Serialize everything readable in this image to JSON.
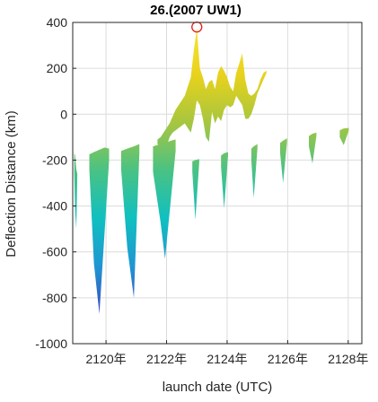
{
  "chart_data": {
    "type": "area",
    "title": "26.(2007 UW1)",
    "xlabel": "launch date (UTC)",
    "ylabel": "Deflection Distance (km)",
    "xlim": [
      2118.9,
      2128.45
    ],
    "ylim": [
      -1000,
      400
    ],
    "x_ticks": [
      {
        "value": 2120,
        "label": "2120年"
      },
      {
        "value": 2122,
        "label": "2122年"
      },
      {
        "value": 2124,
        "label": "2124年"
      },
      {
        "value": 2126,
        "label": "2126年"
      },
      {
        "value": 2128,
        "label": "2128年"
      }
    ],
    "y_ticks": [
      {
        "value": 400,
        "label": "400"
      },
      {
        "value": 200,
        "label": "200"
      },
      {
        "value": 0,
        "label": "0"
      },
      {
        "value": -200,
        "label": "-200"
      },
      {
        "value": -400,
        "label": "-400"
      },
      {
        "value": -600,
        "label": "-600"
      },
      {
        "value": -800,
        "label": "-800"
      },
      {
        "value": -1000,
        "label": "-1000"
      }
    ],
    "grid": true,
    "colormap": [
      "#3b4cc0",
      "#1e96d2",
      "#10c0c0",
      "#49c284",
      "#a7c63f",
      "#e8d21c",
      "#f9e43a"
    ],
    "lower_band": [
      {
        "x": [
          2118.95,
          2118.98,
          2119.02,
          2119.05
        ],
        "top": [
          -170,
          -180,
          -240,
          -260
        ],
        "bottom": [
          -260,
          -420,
          -500,
          -270
        ]
      },
      {
        "x": [
          2119.45,
          2119.6,
          2119.78,
          2119.95,
          2120.1
        ],
        "top": [
          -175,
          -165,
          -155,
          -145,
          -150
        ],
        "bottom": [
          -240,
          -650,
          -870,
          -520,
          -200
        ]
      },
      {
        "x": [
          2120.5,
          2120.7,
          2120.92,
          2121.1
        ],
        "top": [
          -160,
          -150,
          -140,
          -130
        ],
        "bottom": [
          -240,
          -580,
          -800,
          -170
        ]
      },
      {
        "x": [
          2121.55,
          2121.8,
          2121.95,
          2122.15,
          2122.3
        ],
        "top": [
          -140,
          -130,
          -125,
          -115,
          -110
        ],
        "bottom": [
          -250,
          -470,
          -630,
          -360,
          -160
        ]
      },
      {
        "x": [
          2122.85,
          2122.95,
          2123.08
        ],
        "top": [
          -205,
          -200,
          -195
        ],
        "bottom": [
          -250,
          -460,
          -210
        ]
      },
      {
        "x": [
          2123.8,
          2123.9,
          2124.03
        ],
        "top": [
          -180,
          -170,
          -165
        ],
        "bottom": [
          -230,
          -410,
          -180
        ]
      },
      {
        "x": [
          2124.8,
          2124.88,
          2125.0
        ],
        "top": [
          -150,
          -140,
          -130
        ],
        "bottom": [
          -200,
          -365,
          -150
        ]
      },
      {
        "x": [
          2125.75,
          2125.85,
          2125.98
        ],
        "top": [
          -125,
          -115,
          -105
        ],
        "bottom": [
          -170,
          -300,
          -120
        ]
      },
      {
        "x": [
          2126.7,
          2126.82,
          2126.95
        ],
        "top": [
          -95,
          -85,
          -80
        ],
        "bottom": [
          -140,
          -215,
          -95
        ]
      },
      {
        "x": [
          2127.72,
          2127.85,
          2128.02
        ],
        "top": [
          -70,
          -62,
          -60
        ],
        "bottom": [
          -100,
          -135,
          -70
        ]
      }
    ],
    "upper_band": {
      "x": [
        2121.7,
        2121.8,
        2121.9,
        2122.0,
        2122.1,
        2122.2,
        2122.3,
        2122.4,
        2122.5,
        2122.6,
        2122.7,
        2122.8,
        2122.9,
        2123.0,
        2123.1,
        2123.2,
        2123.3,
        2123.4,
        2123.5,
        2123.6,
        2123.7,
        2123.8,
        2123.9,
        2124.0,
        2124.1,
        2124.2,
        2124.3,
        2124.4,
        2124.5,
        2124.6,
        2124.7,
        2124.8,
        2124.9,
        2125.0,
        2125.1,
        2125.2,
        2125.3
      ],
      "top": [
        -110,
        -100,
        -80,
        -60,
        -40,
        -10,
        20,
        40,
        60,
        80,
        120,
        160,
        280,
        375,
        200,
        160,
        110,
        140,
        150,
        110,
        180,
        210,
        190,
        160,
        120,
        100,
        180,
        220,
        265,
        150,
        90,
        80,
        90,
        110,
        150,
        180,
        190
      ],
      "bottom": [
        -130,
        -140,
        -150,
        -140,
        -100,
        -80,
        -70,
        -60,
        -50,
        -40,
        -60,
        -80,
        -20,
        60,
        40,
        -20,
        -100,
        -120,
        10,
        -40,
        -10,
        -30,
        20,
        40,
        30,
        40,
        80,
        60,
        40,
        -20,
        -20,
        0,
        40,
        90,
        120,
        150,
        180
      ]
    },
    "marker": {
      "x": 2123.0,
      "y": 380,
      "style": "open-circle",
      "color": "#e4211c"
    }
  }
}
